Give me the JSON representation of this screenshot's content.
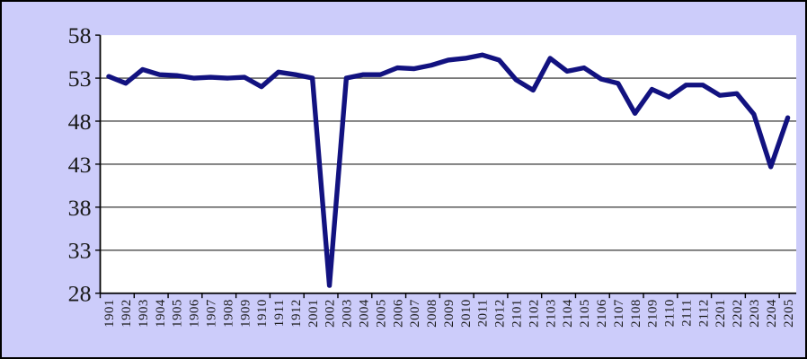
{
  "window": {
    "background_color": "#ccccfa",
    "frame_border_color": "#000000"
  },
  "chart_data": {
    "type": "line",
    "title": "",
    "xlabel": "",
    "ylabel": "",
    "categories": [
      "1901",
      "1902",
      "1903",
      "1904",
      "1905",
      "1906",
      "1907",
      "1908",
      "1909",
      "1910",
      "1911",
      "1912",
      "2001",
      "2002",
      "2003",
      "2004",
      "2005",
      "2006",
      "2007",
      "2008",
      "2009",
      "2010",
      "2011",
      "2012",
      "2101",
      "2102",
      "2103",
      "2104",
      "2105",
      "2106",
      "2107",
      "2108",
      "2109",
      "2110",
      "2111",
      "2112",
      "2201",
      "2202",
      "2203",
      "2204",
      "2205"
    ],
    "values": [
      53.2,
      52.4,
      54.0,
      53.4,
      53.3,
      53.0,
      53.1,
      53.0,
      53.1,
      52.0,
      53.7,
      53.4,
      53.0,
      28.9,
      53.0,
      53.4,
      53.4,
      54.2,
      54.1,
      54.5,
      55.1,
      55.3,
      55.7,
      55.1,
      52.8,
      51.6,
      55.3,
      53.8,
      54.2,
      52.9,
      52.4,
      48.9,
      51.7,
      50.8,
      52.2,
      52.2,
      51.0,
      51.2,
      48.8,
      42.7,
      48.4
    ],
    "ylim": [
      28,
      58
    ],
    "ytick_step": 5,
    "yticks": [
      58,
      53,
      48,
      43,
      38,
      33,
      28
    ],
    "grid": "horizontal",
    "legend": "none",
    "line_color": "#121280",
    "plot_background": "#ffffff",
    "gridline_color": "#4a4a4a",
    "axis_color": "#000000",
    "label_color": "#1a1a1a"
  }
}
